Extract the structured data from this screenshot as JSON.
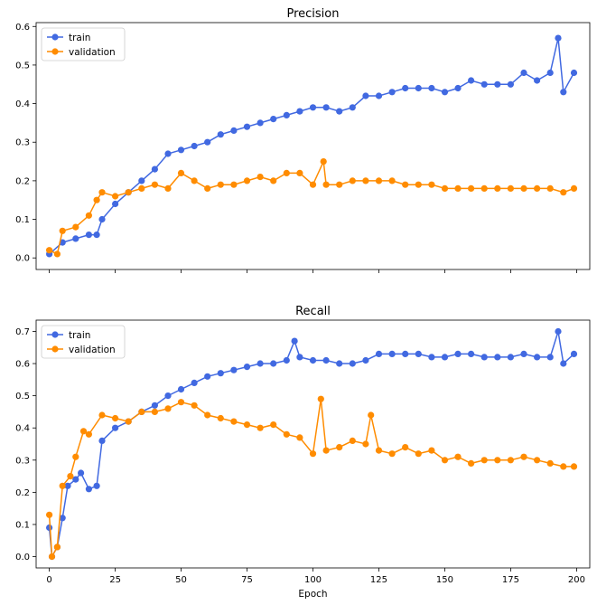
{
  "chart_data": [
    {
      "type": "line",
      "title": "Precision",
      "xlabel": "",
      "ylabel": "",
      "xlim": [
        -5,
        205
      ],
      "ylim": [
        -0.03,
        0.61
      ],
      "xticks": [
        0,
        25,
        50,
        75,
        100,
        125,
        150,
        175,
        200
      ],
      "xtick_labels_visible": false,
      "yticks": [
        0.0,
        0.1,
        0.2,
        0.3,
        0.4,
        0.5,
        0.6
      ],
      "ytick_labels": [
        "0.0",
        "0.1",
        "0.2",
        "0.3",
        "0.4",
        "0.5",
        "0.6"
      ],
      "legend": "upper left",
      "grid": false,
      "series": [
        {
          "name": "train",
          "color": "#4169e1",
          "x": [
            0,
            5,
            10,
            15,
            18,
            20,
            25,
            30,
            35,
            40,
            45,
            50,
            55,
            60,
            65,
            70,
            75,
            80,
            85,
            90,
            95,
            100,
            105,
            110,
            115,
            120,
            125,
            130,
            135,
            140,
            145,
            150,
            155,
            160,
            165,
            170,
            175,
            180,
            185,
            190,
            193,
            195,
            199
          ],
          "y": [
            0.01,
            0.04,
            0.05,
            0.06,
            0.06,
            0.1,
            0.14,
            0.17,
            0.2,
            0.23,
            0.27,
            0.28,
            0.29,
            0.3,
            0.32,
            0.33,
            0.34,
            0.35,
            0.36,
            0.37,
            0.38,
            0.39,
            0.39,
            0.38,
            0.39,
            0.42,
            0.42,
            0.43,
            0.44,
            0.44,
            0.44,
            0.43,
            0.44,
            0.46,
            0.45,
            0.45,
            0.45,
            0.48,
            0.46,
            0.48,
            0.57,
            0.43,
            0.48
          ]
        },
        {
          "name": "validation",
          "color": "#ff8c00",
          "x": [
            0,
            3,
            5,
            10,
            15,
            18,
            20,
            25,
            30,
            35,
            40,
            45,
            50,
            55,
            60,
            65,
            70,
            75,
            80,
            85,
            90,
            95,
            100,
            104,
            105,
            110,
            115,
            120,
            125,
            130,
            135,
            140,
            145,
            150,
            155,
            160,
            165,
            170,
            175,
            180,
            185,
            190,
            195,
            199
          ],
          "y": [
            0.02,
            0.01,
            0.07,
            0.08,
            0.11,
            0.15,
            0.17,
            0.16,
            0.17,
            0.18,
            0.19,
            0.18,
            0.22,
            0.2,
            0.18,
            0.19,
            0.19,
            0.2,
            0.21,
            0.2,
            0.22,
            0.22,
            0.19,
            0.25,
            0.19,
            0.19,
            0.2,
            0.2,
            0.2,
            0.2,
            0.19,
            0.19,
            0.19,
            0.18,
            0.18,
            0.18,
            0.18,
            0.18,
            0.18,
            0.18,
            0.18,
            0.18,
            0.17,
            0.18
          ]
        }
      ]
    },
    {
      "type": "line",
      "title": "Recall",
      "xlabel": "Epoch",
      "ylabel": "",
      "xlim": [
        -5,
        205
      ],
      "ylim": [
        -0.035,
        0.735
      ],
      "xticks": [
        0,
        25,
        50,
        75,
        100,
        125,
        150,
        175,
        200
      ],
      "xtick_labels": [
        "0",
        "25",
        "50",
        "75",
        "100",
        "125",
        "150",
        "175",
        "200"
      ],
      "yticks": [
        0.0,
        0.1,
        0.2,
        0.3,
        0.4,
        0.5,
        0.6,
        0.7
      ],
      "ytick_labels": [
        "0.0",
        "0.1",
        "0.2",
        "0.3",
        "0.4",
        "0.5",
        "0.6",
        "0.7"
      ],
      "legend": "upper left",
      "grid": false,
      "series": [
        {
          "name": "train",
          "color": "#4169e1",
          "x": [
            0,
            1,
            3,
            5,
            7,
            10,
            12,
            15,
            18,
            20,
            25,
            30,
            35,
            40,
            45,
            50,
            55,
            60,
            65,
            70,
            75,
            80,
            85,
            90,
            93,
            95,
            100,
            105,
            110,
            115,
            120,
            125,
            130,
            135,
            140,
            145,
            150,
            155,
            160,
            165,
            170,
            175,
            180,
            185,
            190,
            193,
            195,
            199
          ],
          "y": [
            0.09,
            0.0,
            0.03,
            0.12,
            0.22,
            0.24,
            0.26,
            0.21,
            0.22,
            0.36,
            0.4,
            0.42,
            0.45,
            0.47,
            0.5,
            0.52,
            0.54,
            0.56,
            0.57,
            0.58,
            0.59,
            0.6,
            0.6,
            0.61,
            0.67,
            0.62,
            0.61,
            0.61,
            0.6,
            0.6,
            0.61,
            0.63,
            0.63,
            0.63,
            0.63,
            0.62,
            0.62,
            0.63,
            0.63,
            0.62,
            0.62,
            0.62,
            0.63,
            0.62,
            0.62,
            0.7,
            0.6,
            0.63
          ]
        },
        {
          "name": "validation",
          "color": "#ff8c00",
          "x": [
            0,
            1,
            3,
            5,
            8,
            10,
            13,
            15,
            20,
            25,
            30,
            35,
            40,
            45,
            50,
            55,
            60,
            65,
            70,
            75,
            80,
            85,
            90,
            95,
            100,
            103,
            105,
            110,
            115,
            120,
            122,
            125,
            130,
            135,
            140,
            145,
            150,
            155,
            160,
            165,
            170,
            175,
            180,
            185,
            190,
            195,
            199
          ],
          "y": [
            0.13,
            0.0,
            0.03,
            0.22,
            0.25,
            0.31,
            0.39,
            0.38,
            0.44,
            0.43,
            0.42,
            0.45,
            0.45,
            0.46,
            0.48,
            0.47,
            0.44,
            0.43,
            0.42,
            0.41,
            0.4,
            0.41,
            0.38,
            0.37,
            0.32,
            0.49,
            0.33,
            0.34,
            0.36,
            0.35,
            0.44,
            0.33,
            0.32,
            0.34,
            0.32,
            0.33,
            0.3,
            0.31,
            0.29,
            0.3,
            0.3,
            0.3,
            0.31,
            0.3,
            0.29,
            0.28,
            0.28
          ]
        }
      ]
    }
  ]
}
